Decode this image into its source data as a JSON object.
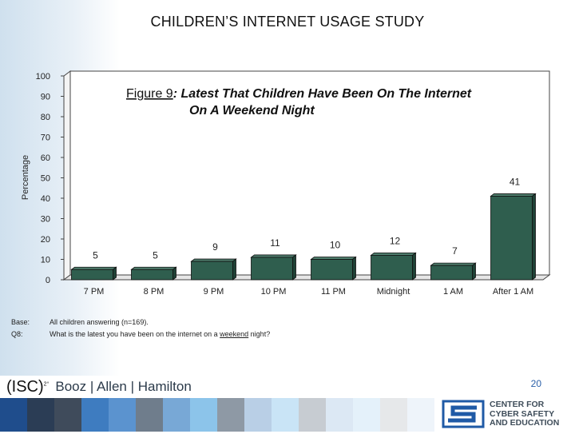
{
  "page_title": "CHILDREN’S INTERNET USAGE STUDY",
  "chart_data": {
    "type": "bar",
    "title_prefix": "Figure 9",
    "title_line1": ": Latest That Children Have Been On The Internet",
    "title_line2": "On A Weekend Night",
    "ylabel": "Percentage",
    "xlabel": "",
    "ylim": [
      0,
      100
    ],
    "yticks": [
      0,
      10,
      20,
      30,
      40,
      50,
      60,
      70,
      80,
      90,
      100
    ],
    "categories": [
      "7 PM",
      "8 PM",
      "9 PM",
      "10 PM",
      "11 PM",
      "Midnight",
      "1 AM",
      "After 1 AM"
    ],
    "values": [
      5,
      5,
      9,
      11,
      10,
      12,
      7,
      41
    ],
    "bar_color": "#2f5e4e",
    "grid": false
  },
  "base": {
    "base_label": "Base:",
    "base_text": "All children answering (n=169).",
    "q_label": "Q8:",
    "q_text_before": "What is the latest you have been on the internet on a ",
    "q_text_underlined": "weekend",
    "q_text_after": " night?"
  },
  "page_number": "20",
  "logo": {
    "isc": "(ISC)",
    "isc_sup": "2°",
    "booz": "Booz | Allen | Hamilton"
  },
  "ccs_logo": {
    "line1": "CENTER FOR",
    "line2": "CYBER SAFETY",
    "line3": "AND EDUCATION"
  },
  "colors": {
    "strip": [
      "#1f4d8c",
      "#2b3d55",
      "#3f4b5b",
      "#3e7cc0",
      "#5b93cf",
      "#6f7d8c",
      "#78a8d6",
      "#8cc4ea",
      "#8e99a5",
      "#b9cfe6",
      "#c9e4f6",
      "#c7ccd2",
      "#dce8f4",
      "#e4f1fa",
      "#e6e8ea",
      "#eef4fa"
    ]
  }
}
